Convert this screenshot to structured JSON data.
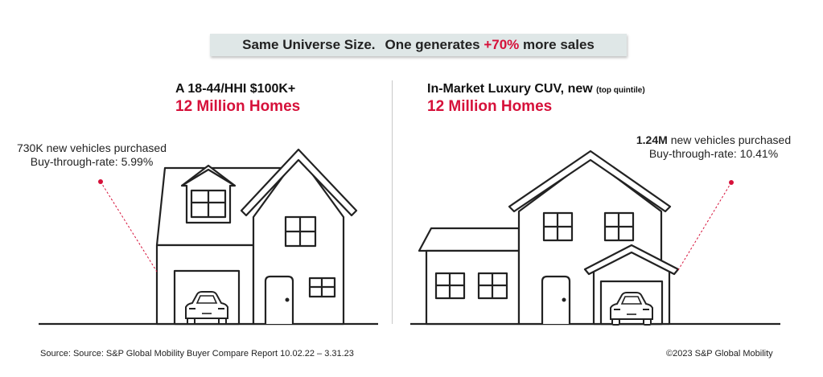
{
  "banner": {
    "part1": "Same Universe Size.",
    "part2": "One generates",
    "highlight": "+70%",
    "part3": "more sales"
  },
  "left": {
    "title": "A 18-44/HHI $100K+",
    "homes": "12 Million Homes",
    "vehicles_text": "730K new vehicles purchased",
    "rate_text": "Buy-through-rate: 5.99%"
  },
  "right": {
    "title": "In-Market Luxury CUV, new",
    "title_note": "(top quintile)",
    "homes": "12 Million Homes",
    "vehicles_value": "1.24M",
    "vehicles_text": "new vehicles purchased",
    "rate_text": "Buy-through-rate: 10.41%"
  },
  "footer": {
    "source": "Source: Source: S&P Global Mobility Buyer Compare Report 10.02.22 – 3.31.23",
    "copyright": "©2023 S&P Global Mobility"
  },
  "colors": {
    "accent": "#d6113a",
    "banner_bg": "#dfe7e7",
    "line": "#222222"
  },
  "icons": [
    "house-left-icon",
    "house-right-icon",
    "car-icon"
  ]
}
